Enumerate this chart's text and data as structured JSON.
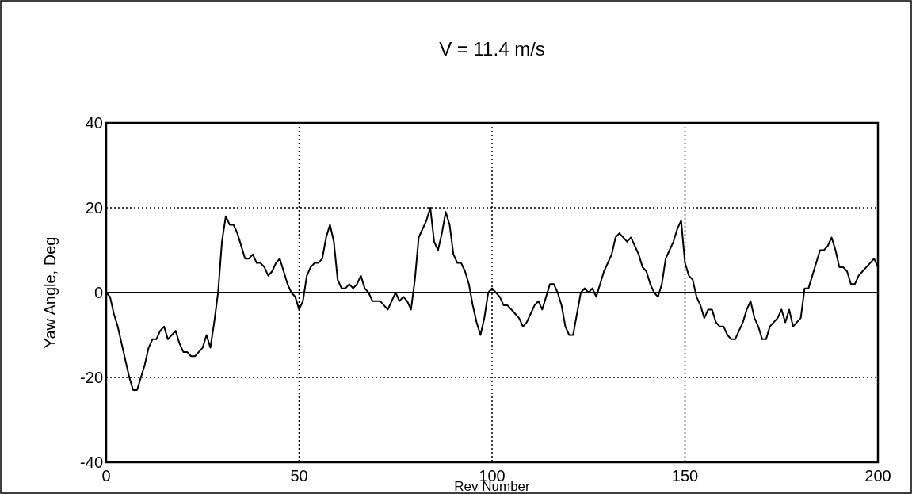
{
  "chart_data": {
    "type": "line",
    "title": "V = 11.4 m/s",
    "xlabel": "Rev Number",
    "ylabel": "Yaw Angle, Deg",
    "xlim": [
      0,
      200
    ],
    "xticks": [
      0,
      50,
      100,
      150,
      200
    ],
    "ylim": [
      -40,
      40
    ],
    "yticks": [
      -40,
      -20,
      0,
      20,
      40
    ],
    "grid": true,
    "marker": "none",
    "line_style": "solid",
    "ref_lines": [
      {
        "axis": "y",
        "value": 0,
        "line_style": "solid",
        "color": "#000000"
      }
    ],
    "x": [
      0,
      1,
      2,
      3,
      4,
      5,
      6,
      7,
      8,
      9,
      10,
      11,
      12,
      13,
      14,
      15,
      16,
      17,
      18,
      19,
      20,
      21,
      22,
      23,
      24,
      25,
      26,
      27,
      28,
      29,
      30,
      31,
      32,
      33,
      34,
      35,
      36,
      37,
      38,
      39,
      40,
      41,
      42,
      43,
      44,
      45,
      46,
      47,
      48,
      49,
      50,
      51,
      52,
      53,
      54,
      55,
      56,
      57,
      58,
      59,
      60,
      61,
      62,
      63,
      64,
      65,
      66,
      67,
      68,
      69,
      70,
      71,
      72,
      73,
      74,
      75,
      76,
      77,
      78,
      79,
      80,
      81,
      82,
      83,
      84,
      85,
      86,
      87,
      88,
      89,
      90,
      91,
      92,
      93,
      94,
      95,
      96,
      97,
      98,
      99,
      100,
      101,
      102,
      103,
      104,
      105,
      106,
      107,
      108,
      109,
      110,
      111,
      112,
      113,
      114,
      115,
      116,
      117,
      118,
      119,
      120,
      121,
      122,
      123,
      124,
      125,
      126,
      127,
      128,
      129,
      130,
      131,
      132,
      133,
      134,
      135,
      136,
      137,
      138,
      139,
      140,
      141,
      142,
      143,
      144,
      145,
      146,
      147,
      148,
      149,
      150,
      151,
      152,
      153,
      154,
      155,
      156,
      157,
      158,
      159,
      160,
      161,
      162,
      163,
      164,
      165,
      166,
      167,
      168,
      169,
      170,
      171,
      172,
      173,
      174,
      175,
      176,
      177,
      178,
      179,
      180,
      181,
      182,
      183,
      184,
      185,
      186,
      187,
      188,
      189,
      190,
      191,
      192,
      193,
      194,
      195,
      196,
      197,
      198,
      199,
      200
    ],
    "series": [
      {
        "color": "#000000",
        "values": [
          0,
          -1,
          -5,
          -8,
          -12,
          -16,
          -20,
          -23,
          -23,
          -20,
          -17,
          -13,
          -11,
          -11,
          -9,
          -8,
          -11,
          -10,
          -9,
          -12,
          -14,
          -14,
          -15,
          -15,
          -14,
          -13,
          -10,
          -13,
          -7,
          0,
          12,
          18,
          16,
          16,
          14,
          11,
          8,
          8,
          9,
          7,
          7,
          6,
          4,
          5,
          7,
          8,
          5,
          2,
          0,
          -1,
          -4,
          -2,
          4,
          6,
          7,
          7,
          8,
          13,
          16,
          12,
          3,
          1,
          1,
          2,
          1,
          2,
          4,
          1,
          0,
          -2,
          -2,
          -2,
          -3,
          -4,
          -2,
          0,
          -2,
          -1,
          -2,
          -4,
          3,
          13,
          15,
          17,
          20,
          12,
          10,
          14,
          19,
          16,
          9,
          7,
          7,
          5,
          2,
          -3,
          -7,
          -10,
          -6,
          0,
          1,
          0,
          -1,
          -3,
          -3,
          -4,
          -5,
          -6,
          -8,
          -7,
          -5,
          -3,
          -2,
          -4,
          -1,
          2,
          2,
          0,
          -3,
          -8,
          -10,
          -10,
          -5,
          0,
          1,
          0,
          1,
          -1,
          2,
          5,
          7,
          9,
          13,
          14,
          13,
          12,
          13,
          11,
          9,
          6,
          5,
          2,
          0,
          -1,
          2,
          8,
          10,
          12,
          15,
          17,
          7,
          4,
          3,
          -1,
          -3,
          -6,
          -4,
          -4,
          -7,
          -8,
          -8,
          -10,
          -11,
          -11,
          -9,
          -7,
          -4,
          -2,
          -6,
          -8,
          -11,
          -11,
          -8,
          -7,
          -6,
          -4,
          -7,
          -4,
          -8,
          -7,
          -6,
          1,
          1,
          4,
          7,
          10,
          10,
          11,
          13,
          10,
          6,
          6,
          5,
          2,
          2,
          4,
          5,
          6,
          7,
          8,
          6
        ]
      }
    ]
  }
}
